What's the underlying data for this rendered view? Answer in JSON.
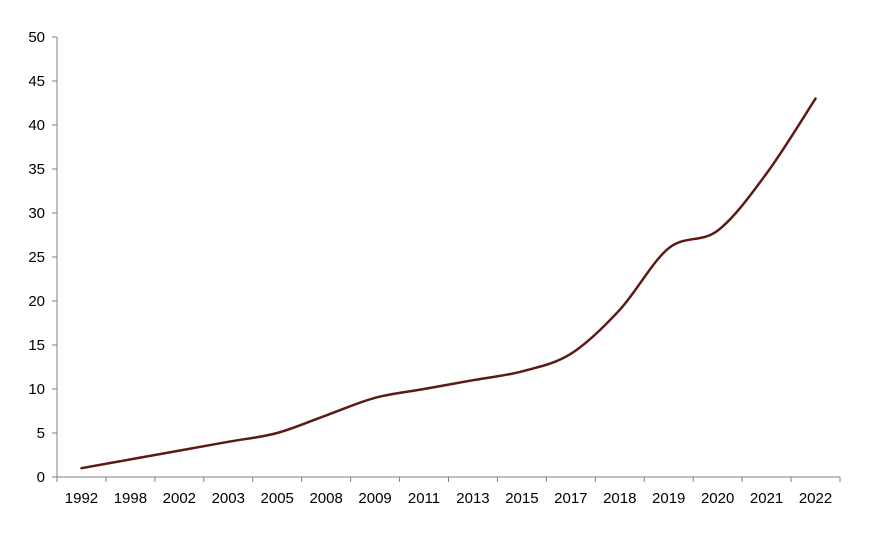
{
  "chart_data": {
    "type": "line",
    "title": "",
    "xlabel": "",
    "ylabel": "",
    "categories": [
      "1992",
      "1998",
      "2002",
      "2003",
      "2005",
      "2008",
      "2009",
      "2011",
      "2013",
      "2015",
      "2017",
      "2018",
      "2019",
      "2020",
      "2021",
      "2022"
    ],
    "series": [
      {
        "values": [
          1,
          2,
          3,
          4,
          5,
          7,
          9,
          10,
          11,
          12,
          14,
          19,
          26,
          28,
          34.5,
          43
        ],
        "color": "#5c1a14"
      }
    ],
    "ylim": [
      0,
      50
    ],
    "yticks": [
      0,
      5,
      10,
      15,
      20,
      25,
      30,
      35,
      40,
      45,
      50
    ],
    "grid": false,
    "legend": "none"
  }
}
